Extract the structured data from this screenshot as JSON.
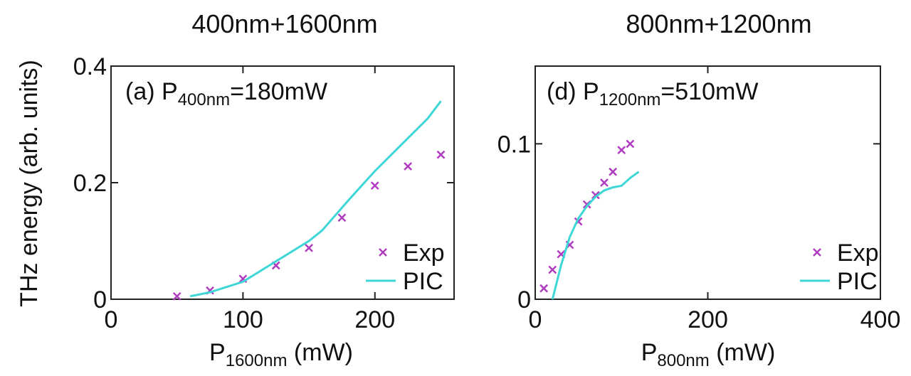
{
  "figure": {
    "ylabel": "THz energy (arb. units)"
  },
  "chart_data": [
    {
      "type": "scatter",
      "title": "400nm+1600nm",
      "annotation": {
        "prefix": "(a) P",
        "sub": "400nm",
        "suffix": "=180mW"
      },
      "xlabel": {
        "main": "P",
        "sub": "1600nm",
        "rest": " (mW)"
      },
      "ylabel": "THz energy (arb. units)",
      "xlim": [
        0,
        260
      ],
      "ylim": [
        0,
        0.4
      ],
      "xticks": [
        0,
        100,
        200
      ],
      "yticks": [
        0,
        0.2,
        0.4
      ],
      "xtick_labels": [
        "0",
        "100",
        "200"
      ],
      "ytick_labels": [
        "0",
        "0.2",
        "0.4"
      ],
      "legend_position": "bottom-right",
      "series": [
        {
          "name": "Exp",
          "kind": "scatter",
          "marker": "x",
          "color": "#b03cc0",
          "x": [
            50,
            75,
            100,
            125,
            150,
            175,
            200,
            225,
            250
          ],
          "y": [
            0.005,
            0.015,
            0.035,
            0.058,
            0.088,
            0.14,
            0.195,
            0.228,
            0.248
          ]
        },
        {
          "name": "PIC",
          "kind": "line",
          "color": "#3fd6d6",
          "x": [
            60,
            75,
            100,
            125,
            150,
            160,
            180,
            200,
            220,
            240,
            250
          ],
          "y": [
            0.005,
            0.012,
            0.03,
            0.065,
            0.1,
            0.118,
            0.17,
            0.22,
            0.265,
            0.31,
            0.34
          ]
        }
      ]
    },
    {
      "type": "scatter",
      "title": "800nm+1200nm",
      "annotation": {
        "prefix": "(d) P",
        "sub": "1200nm",
        "suffix": "=510mW"
      },
      "xlabel": {
        "main": "P",
        "sub": "800nm",
        "rest": " (mW)"
      },
      "xlim": [
        0,
        400
      ],
      "ylim": [
        0,
        0.15
      ],
      "xticks": [
        0,
        200,
        400
      ],
      "yticks": [
        0,
        0.1
      ],
      "xtick_labels": [
        "0",
        "200",
        "400"
      ],
      "ytick_labels": [
        "0",
        "0.1"
      ],
      "legend_position": "bottom-right",
      "series": [
        {
          "name": "Exp",
          "kind": "scatter",
          "marker": "x",
          "color": "#b03cc0",
          "x": [
            10,
            20,
            30,
            40,
            50,
            60,
            70,
            80,
            90,
            100,
            110
          ],
          "y": [
            0.007,
            0.019,
            0.029,
            0.035,
            0.05,
            0.061,
            0.067,
            0.075,
            0.082,
            0.096,
            0.1
          ]
        },
        {
          "name": "PIC",
          "kind": "line",
          "color": "#3fd6d6",
          "x": [
            20,
            30,
            40,
            50,
            60,
            70,
            80,
            90,
            100,
            110,
            120
          ],
          "y": [
            0.0,
            0.022,
            0.04,
            0.052,
            0.06,
            0.066,
            0.07,
            0.072,
            0.073,
            0.078,
            0.082
          ]
        }
      ]
    }
  ]
}
